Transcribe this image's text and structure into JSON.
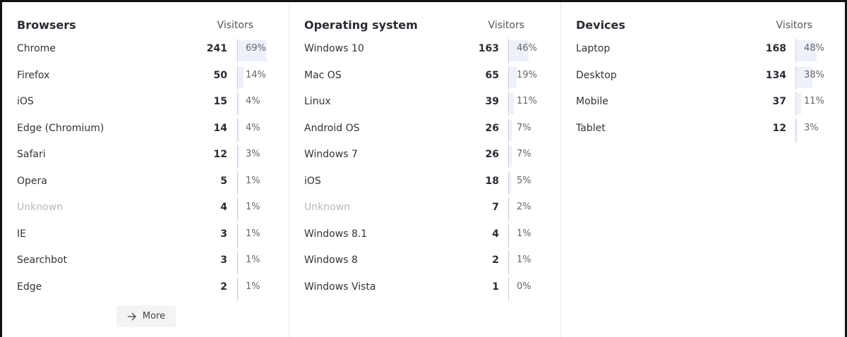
{
  "panels": [
    {
      "title": "Browsers",
      "column": "Visitors",
      "more": "More",
      "rows": [
        {
          "name": "Chrome",
          "visitors": 241,
          "percent": {
            "value": 69,
            "label": "69%"
          }
        },
        {
          "name": "Firefox",
          "visitors": 50,
          "percent": {
            "value": 14,
            "label": "14%"
          }
        },
        {
          "name": "iOS",
          "visitors": 15,
          "percent": {
            "value": 4,
            "label": "4%"
          }
        },
        {
          "name": "Edge (Chromium)",
          "visitors": 14,
          "percent": {
            "value": 4,
            "label": "4%"
          }
        },
        {
          "name": "Safari",
          "visitors": 12,
          "percent": {
            "value": 3,
            "label": "3%"
          }
        },
        {
          "name": "Opera",
          "visitors": 5,
          "percent": {
            "value": 1,
            "label": "1%"
          }
        },
        {
          "name": "Unknown",
          "muted": true,
          "visitors": 4,
          "percent": {
            "value": 1,
            "label": "1%"
          }
        },
        {
          "name": "IE",
          "visitors": 3,
          "percent": {
            "value": 1,
            "label": "1%"
          }
        },
        {
          "name": "Searchbot",
          "visitors": 3,
          "percent": {
            "value": 1,
            "label": "1%"
          }
        },
        {
          "name": "Edge",
          "visitors": 2,
          "percent": {
            "value": 1,
            "label": "1%"
          }
        }
      ]
    },
    {
      "title": "Operating system",
      "column": "Visitors",
      "rows": [
        {
          "name": "Windows 10",
          "visitors": 163,
          "percent": {
            "value": 46,
            "label": "46%"
          }
        },
        {
          "name": "Mac OS",
          "visitors": 65,
          "percent": {
            "value": 19,
            "label": "19%"
          }
        },
        {
          "name": "Linux",
          "visitors": 39,
          "percent": {
            "value": 11,
            "label": "11%"
          }
        },
        {
          "name": "Android OS",
          "visitors": 26,
          "percent": {
            "value": 7,
            "label": "7%"
          }
        },
        {
          "name": "Windows 7",
          "visitors": 26,
          "percent": {
            "value": 7,
            "label": "7%"
          }
        },
        {
          "name": "iOS",
          "visitors": 18,
          "percent": {
            "value": 5,
            "label": "5%"
          }
        },
        {
          "name": "Unknown",
          "muted": true,
          "visitors": 7,
          "percent": {
            "value": 2,
            "label": "2%"
          }
        },
        {
          "name": "Windows 8.1",
          "visitors": 4,
          "percent": {
            "value": 1,
            "label": "1%"
          }
        },
        {
          "name": "Windows 8",
          "visitors": 2,
          "percent": {
            "value": 1,
            "label": "1%"
          }
        },
        {
          "name": "Windows Vista",
          "visitors": 1,
          "percent": {
            "value": 0,
            "label": "0%"
          }
        }
      ]
    },
    {
      "title": "Devices",
      "column": "Visitors",
      "rows": [
        {
          "name": "Laptop",
          "visitors": 168,
          "percent": {
            "value": 48,
            "label": "48%"
          }
        },
        {
          "name": "Desktop",
          "visitors": 134,
          "percent": {
            "value": 38,
            "label": "38%"
          }
        },
        {
          "name": "Mobile",
          "visitors": 37,
          "percent": {
            "value": 11,
            "label": "11%"
          }
        },
        {
          "name": "Tablet",
          "visitors": 12,
          "percent": {
            "value": 3,
            "label": "3%"
          }
        }
      ]
    }
  ]
}
